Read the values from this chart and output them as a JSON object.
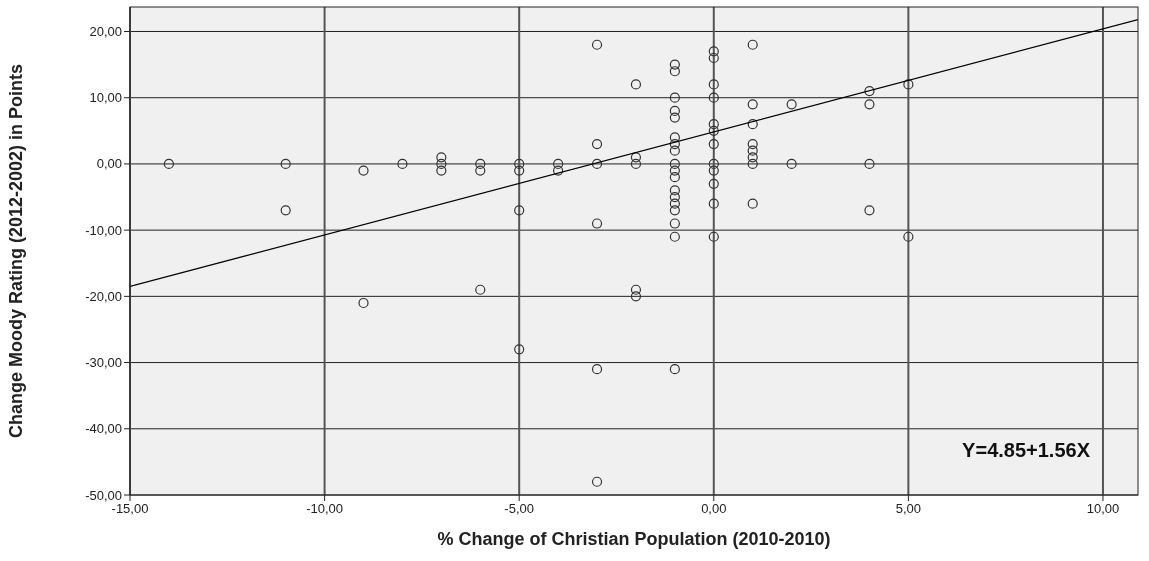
{
  "chart_data": {
    "type": "scatter",
    "xlabel": "% Change of Christian Population (2010-2010)",
    "ylabel": "Change Moody Rating (2012-2002) in Points",
    "xlim": [
      -15,
      10.9
    ],
    "ylim": [
      -50,
      23.7
    ],
    "xticks": [
      {
        "value": -15,
        "label": "-15,00"
      },
      {
        "value": -10,
        "label": "-10,00"
      },
      {
        "value": -5,
        "label": "-5,00"
      },
      {
        "value": 0,
        "label": "0,00"
      },
      {
        "value": 5,
        "label": "5,00"
      },
      {
        "value": 10,
        "label": "10,00"
      }
    ],
    "yticks": [
      {
        "value": -50,
        "label": "-50,00"
      },
      {
        "value": -40,
        "label": "-40,00"
      },
      {
        "value": -30,
        "label": "-30,00"
      },
      {
        "value": -20,
        "label": "-20,00"
      },
      {
        "value": -10,
        "label": "-10,00"
      },
      {
        "value": 0,
        "label": "0,00"
      },
      {
        "value": 10,
        "label": "10,00"
      },
      {
        "value": 20,
        "label": "20,00"
      }
    ],
    "grid": true,
    "annotations": [
      "Y=4.85+1.56X"
    ],
    "series": [
      {
        "color": "#333333",
        "marker": "circle",
        "x": [
          -14,
          -11,
          -11,
          -9,
          -9,
          -8,
          -7,
          -7,
          -7,
          -6,
          -6,
          -6,
          -5,
          -5,
          -5,
          -5,
          -4,
          -4,
          -3,
          -3,
          -3,
          -3,
          -3,
          -3,
          -2,
          -2,
          -2,
          -2,
          -2,
          -1,
          -1,
          -1,
          -1,
          -1,
          -1,
          -1,
          -1,
          -1,
          -1,
          -1,
          -1,
          -1,
          -1,
          -1,
          -1,
          -1,
          -1,
          0,
          0,
          0,
          0,
          0,
          0,
          0,
          0,
          0,
          0,
          0,
          0,
          1,
          1,
          1,
          1,
          1,
          1,
          1,
          1,
          2,
          2,
          4,
          4,
          4,
          4,
          5,
          5
        ],
        "values": [
          0,
          0,
          -7,
          -1,
          -21,
          0,
          1,
          0,
          -1,
          0,
          -1,
          -19,
          0,
          -1,
          -7,
          -28,
          0,
          -1,
          18,
          3,
          0,
          -9,
          -31,
          -48,
          12,
          1,
          0,
          -19,
          -20,
          15,
          14,
          10,
          8,
          7,
          4,
          3,
          2,
          0,
          -1,
          -2,
          -4,
          -5,
          -6,
          -7,
          -9,
          -11,
          -31,
          17,
          16,
          12,
          10,
          6,
          5,
          3,
          0,
          -1,
          -3,
          -6,
          -11,
          18,
          9,
          6,
          3,
          2,
          1,
          0,
          -6,
          9,
          0,
          11,
          9,
          0,
          -7,
          12,
          -11
        ]
      },
      {
        "type": "line",
        "color": "#000000",
        "marker": "none",
        "x": [
          -15,
          10.9
        ],
        "values": [
          -18.5,
          21.8
        ]
      }
    ]
  }
}
